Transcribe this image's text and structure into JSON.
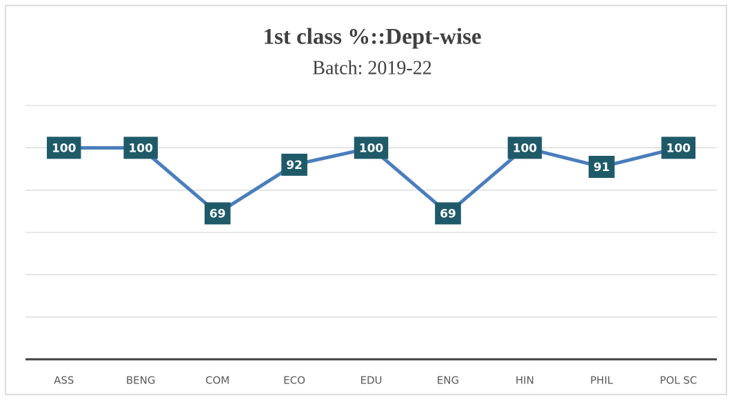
{
  "chart_data": {
    "type": "line",
    "title": "1st class %::Dept-wise",
    "subtitle": "Batch: 2019-22",
    "categories": [
      "ASS",
      "BENG",
      "COM",
      "ECO",
      "EDU",
      "ENG",
      "HIN",
      "PHIL",
      "POL SC"
    ],
    "values": [
      100,
      100,
      69,
      92,
      100,
      69,
      100,
      91,
      100
    ],
    "color": "#4a7ebb",
    "marker_color": "#4a7ebb",
    "label_box_color": "#1f5a68",
    "ylim": [
      0,
      120
    ],
    "yticks": [
      0,
      20,
      40,
      60,
      80,
      100,
      120
    ],
    "grid": true
  }
}
